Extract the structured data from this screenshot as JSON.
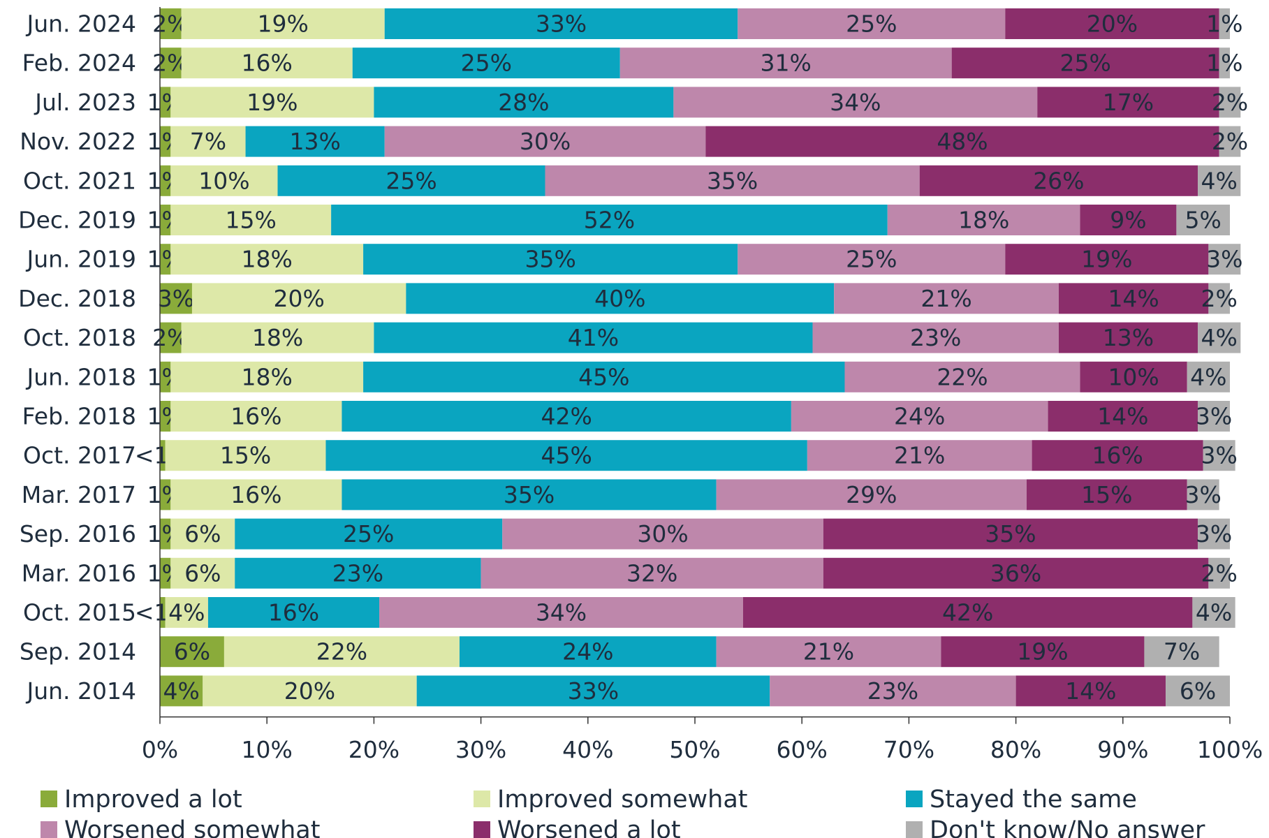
{
  "chart_data": {
    "type": "stacked-bar-horizontal",
    "categories": [
      "Jun. 2024",
      "Feb. 2024",
      "Jul. 2023",
      "Nov. 2022",
      "Oct. 2021",
      "Dec. 2019",
      "Jun. 2019",
      "Dec. 2018",
      "Oct. 2018",
      "Jun. 2018",
      "Feb. 2018",
      "Oct. 2017",
      "Mar. 2017",
      "Sep. 2016",
      "Mar. 2016",
      "Oct. 2015",
      "Sep. 2014",
      "Jun. 2014"
    ],
    "series": [
      {
        "name": "Improved a lot",
        "color": "#8aab3a",
        "label_color": "#1f2d3d",
        "values": [
          2,
          2,
          1,
          1,
          1,
          1,
          1,
          3,
          2,
          1,
          1,
          0.5,
          1,
          1,
          1,
          0.5,
          6,
          4
        ],
        "value_labels": [
          "2%",
          "2%",
          "1%",
          "1%",
          "1%",
          "1%",
          "1%",
          "3%",
          "2%",
          "1%",
          "1%",
          "<1%",
          "1%",
          "1%",
          "1%",
          "<1%",
          "6%",
          "4%"
        ]
      },
      {
        "name": "Improved somewhat",
        "color": "#dde8a8",
        "label_color": "#1f2d3d",
        "values": [
          19,
          16,
          19,
          7,
          10,
          15,
          18,
          20,
          18,
          18,
          16,
          15,
          16,
          6,
          6,
          4,
          22,
          20
        ],
        "value_labels": [
          "19%",
          "16%",
          "19%",
          "7%",
          "10%",
          "15%",
          "18%",
          "20%",
          "18%",
          "18%",
          "16%",
          "15%",
          "16%",
          "6%",
          "6%",
          "4%",
          "22%",
          "20%"
        ]
      },
      {
        "name": "Stayed the same",
        "color": "#0aa5c0",
        "label_color": "#ffffff",
        "values": [
          33,
          25,
          28,
          13,
          25,
          52,
          35,
          40,
          41,
          45,
          42,
          45,
          35,
          25,
          23,
          16,
          24,
          33
        ],
        "value_labels": [
          "33%",
          "25%",
          "28%",
          "13%",
          "25%",
          "52%",
          "35%",
          "40%",
          "41%",
          "45%",
          "42%",
          "45%",
          "35%",
          "25%",
          "23%",
          "16%",
          "24%",
          "33%"
        ]
      },
      {
        "name": "Worsened somewhat",
        "color": "#be87ab",
        "label_color": "#ffffff",
        "values": [
          25,
          31,
          34,
          30,
          35,
          18,
          25,
          21,
          23,
          22,
          24,
          21,
          29,
          30,
          32,
          34,
          21,
          23
        ],
        "value_labels": [
          "25%",
          "31%",
          "34%",
          "30%",
          "35%",
          "18%",
          "25%",
          "21%",
          "23%",
          "22%",
          "24%",
          "21%",
          "29%",
          "30%",
          "32%",
          "34%",
          "21%",
          "23%"
        ]
      },
      {
        "name": "Worsened a lot",
        "color": "#8b2e6b",
        "label_color": "#ffffff",
        "values": [
          20,
          25,
          17,
          48,
          26,
          9,
          19,
          14,
          13,
          10,
          14,
          16,
          15,
          35,
          36,
          42,
          19,
          14
        ],
        "value_labels": [
          "20%",
          "25%",
          "17%",
          "48%",
          "26%",
          "9%",
          "19%",
          "14%",
          "13%",
          "10%",
          "14%",
          "16%",
          "15%",
          "35%",
          "36%",
          "42%",
          "19%",
          "14%"
        ]
      },
      {
        "name": "Don't know/No answer",
        "color": "#b0b0b0",
        "label_color": "#ffffff",
        "values": [
          1,
          1,
          2,
          2,
          4,
          5,
          3,
          2,
          4,
          4,
          3,
          3,
          3,
          3,
          2,
          4,
          7,
          6
        ],
        "value_labels": [
          "1%",
          "1%",
          "2%",
          "2%",
          "4%",
          "5%",
          "3%",
          "2%",
          "4%",
          "4%",
          "3%",
          "3%",
          "3%",
          "3%",
          "2%",
          "4%",
          "7%",
          "6%"
        ]
      }
    ],
    "xlim": [
      0,
      100
    ],
    "xticks": [
      {
        "value": 0,
        "label": "0%"
      },
      {
        "value": 10,
        "label": "10%"
      },
      {
        "value": 20,
        "label": "20%"
      },
      {
        "value": 30,
        "label": "30%"
      },
      {
        "value": 40,
        "label": "40%"
      },
      {
        "value": 50,
        "label": "50%"
      },
      {
        "value": 60,
        "label": "60%"
      },
      {
        "value": 70,
        "label": "70%"
      },
      {
        "value": 80,
        "label": "80%"
      },
      {
        "value": 90,
        "label": "90%"
      },
      {
        "value": 100,
        "label": "100%"
      }
    ],
    "grid": false,
    "legend": "bottom"
  }
}
